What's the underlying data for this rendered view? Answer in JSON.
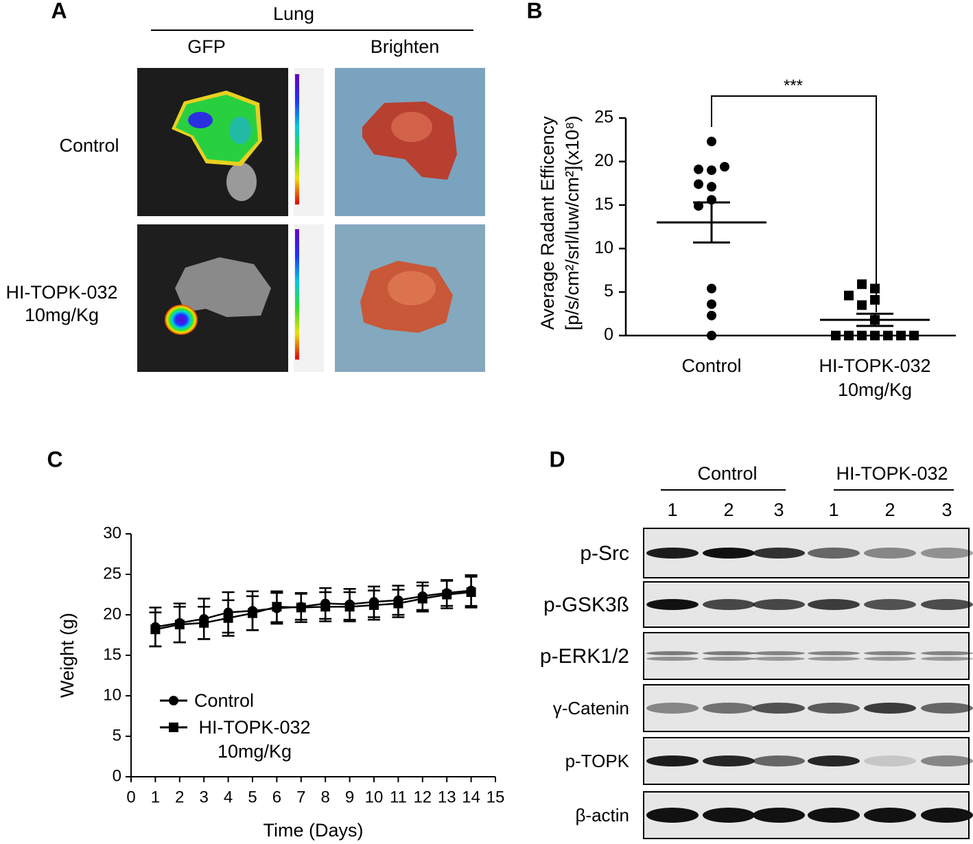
{
  "panel_labels": [
    "A",
    "B",
    "C",
    "D"
  ],
  "panel_a": {
    "header": "Lung",
    "columns": [
      "GFP",
      "Brighten"
    ],
    "rows": [
      "Control",
      "HI-TOPK-032\n10mg/Kg"
    ]
  },
  "chart_data": [
    {
      "type": "scatter",
      "categories": [
        "Control",
        "HI-TOPK-032\n10mg/Kg"
      ],
      "ylabel": [
        "Average Radant Efficency",
        "[p/s/cm²/srl/luw/cm²](x10⁸)"
      ],
      "ylim": [
        0,
        25
      ],
      "yticks": [
        0,
        5,
        10,
        15,
        20,
        25
      ],
      "annotation": "***",
      "groups": [
        {
          "marker": "circle",
          "color": "#000000",
          "values": [
            22.3,
            19.0,
            19.1,
            19.4,
            17.1,
            17.4,
            15.6,
            14.9,
            5.4,
            3.6,
            2.3,
            0
          ],
          "mean": 13.0,
          "sem": 2.3
        },
        {
          "marker": "square",
          "color": "#000000",
          "values": [
            5.4,
            5.9,
            4.1,
            3.5,
            4.6,
            1.8,
            0,
            0,
            0,
            0,
            0,
            0,
            0
          ],
          "mean": 1.8,
          "sem": 0.7
        }
      ]
    },
    {
      "type": "line",
      "x": [
        1,
        2,
        3,
        4,
        5,
        6,
        7,
        8,
        9,
        10,
        11,
        12,
        13,
        14
      ],
      "xlabel": "Time (Days)",
      "ylabel": "Weight (g)",
      "xlim": [
        0,
        15
      ],
      "ylim": [
        0,
        30
      ],
      "xticks": [
        0,
        1,
        2,
        3,
        4,
        5,
        6,
        7,
        8,
        9,
        10,
        11,
        12,
        13,
        14,
        15
      ],
      "yticks": [
        0,
        5,
        10,
        15,
        20,
        25,
        30
      ],
      "legend": "lower left",
      "series": [
        {
          "name": "Control",
          "marker": "circle",
          "color": "#000000",
          "values": [
            18.5,
            19.0,
            19.5,
            20.3,
            20.5,
            20.8,
            21.0,
            21.4,
            21.3,
            21.6,
            21.8,
            22.3,
            22.7,
            23.0
          ],
          "errors": [
            2.4,
            2.4,
            2.5,
            2.5,
            2.4,
            1.9,
            1.6,
            1.9,
            1.9,
            1.9,
            1.8,
            1.7,
            1.6,
            1.9
          ]
        },
        {
          "name": "HI-TOPK-032\n10mg/Kg",
          "marker": "square",
          "color": "#000000",
          "values": [
            18.2,
            18.8,
            19.0,
            19.6,
            20.2,
            21.0,
            20.9,
            21.0,
            21.0,
            21.2,
            21.4,
            22.0,
            22.5,
            22.8
          ],
          "errors": [
            2.1,
            2.2,
            2.0,
            2.2,
            2.1,
            1.9,
            1.8,
            1.8,
            1.8,
            1.8,
            1.7,
            1.6,
            1.7,
            1.9
          ]
        }
      ]
    }
  ],
  "panel_d": {
    "groups": [
      "Control",
      "HI-TOPK-032"
    ],
    "lanes": [
      "1",
      "2",
      "3",
      "1",
      "2",
      "3"
    ],
    "bands": [
      "p-Src",
      "p-GSK3ß",
      "p-ERK1/2",
      "γ-Catenin",
      "p-TOPK",
      "β-actin"
    ]
  }
}
